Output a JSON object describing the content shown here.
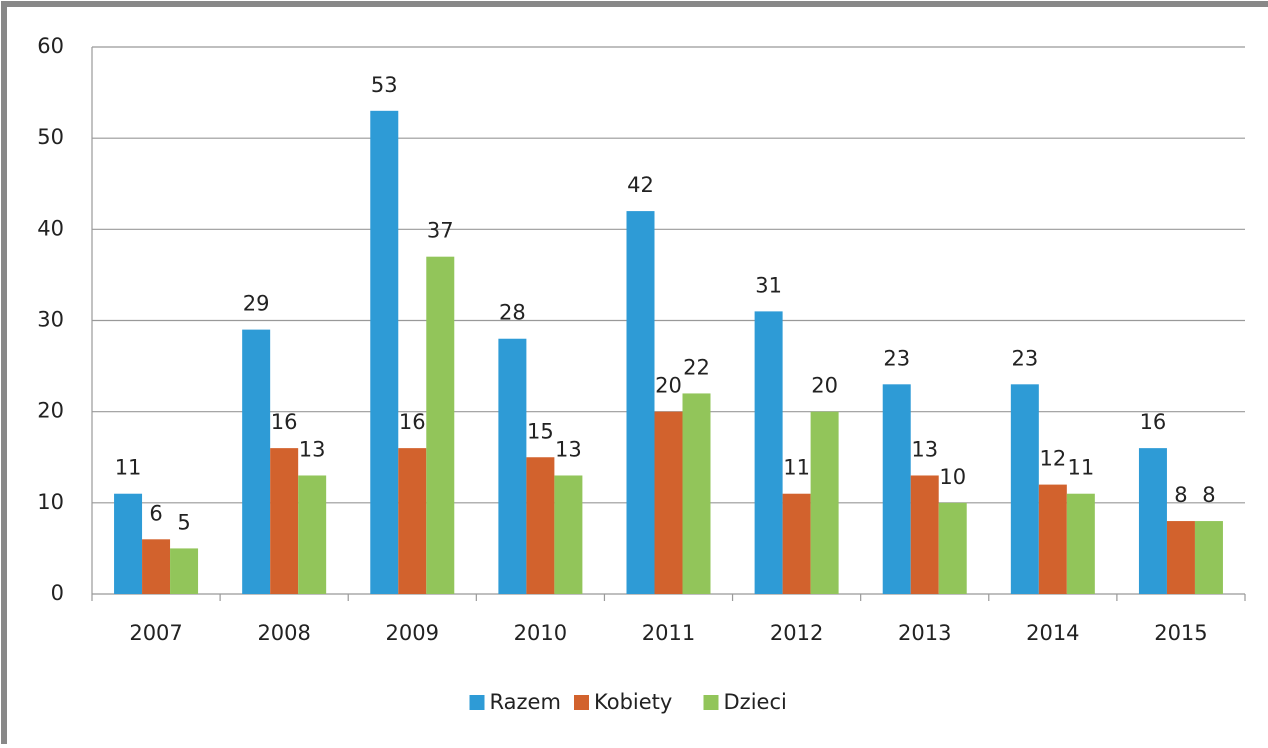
{
  "chart_data": {
    "type": "bar",
    "categories": [
      "2007",
      "2008",
      "2009",
      "2010",
      "2011",
      "2012",
      "2013",
      "2014",
      "2015"
    ],
    "series": [
      {
        "name": "Razem",
        "color": "#2e9bd6",
        "values": [
          11,
          29,
          53,
          28,
          42,
          31,
          23,
          23,
          16
        ]
      },
      {
        "name": "Kobiety",
        "color": "#d2622d",
        "values": [
          6,
          16,
          16,
          15,
          20,
          11,
          13,
          12,
          8
        ]
      },
      {
        "name": "Dzieci",
        "color": "#92c55a",
        "values": [
          5,
          13,
          37,
          13,
          22,
          20,
          10,
          11,
          8
        ]
      }
    ],
    "ylim": [
      0,
      60
    ],
    "yticks": [
      0,
      10,
      20,
      30,
      40,
      50,
      60
    ],
    "grid": true,
    "legend": "bottom"
  }
}
